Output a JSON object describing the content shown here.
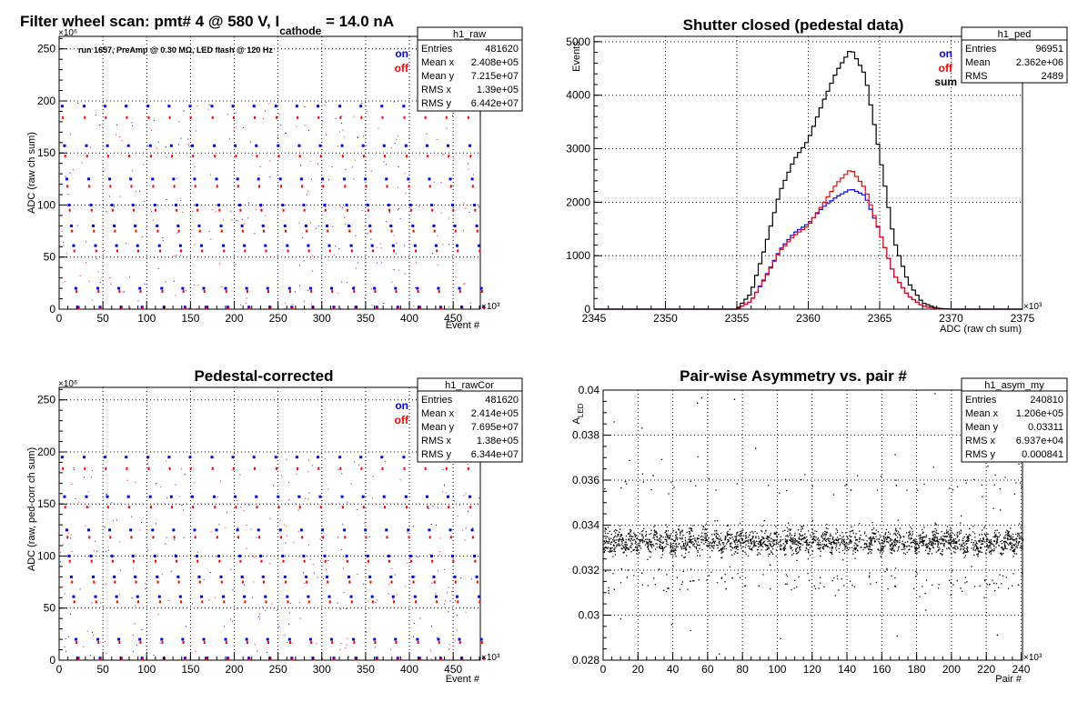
{
  "panels": [
    {
      "id": "raw",
      "title_main": "Filter wheel scan: pmt#   4 @   580 V, I",
      "title_sub": "cathode",
      "title_tail": "  = 14.0 nA",
      "ylabel": "ADC (raw ch sum)",
      "xlabel": "Event #",
      "y_exponent": "×10⁶",
      "x_exponent": "×10³",
      "annotation": "run 1657, PreAmp @ 0.30 MΩ, LED flash @  120 Hz",
      "legend": [
        {
          "label": "on",
          "color": "#0000ff"
        },
        {
          "label": "off",
          "color": "#ff0000"
        }
      ],
      "stats": {
        "name": "h1_raw",
        "rows": [
          [
            "Entries",
            "481620"
          ],
          [
            "Mean x",
            "2.408e+05"
          ],
          [
            "Mean y",
            "7.215e+07"
          ],
          [
            "RMS x",
            "1.39e+05"
          ],
          [
            "RMS y",
            "6.442e+07"
          ]
        ]
      },
      "xticks": [
        "0",
        "50",
        "100",
        "150",
        "200",
        "250",
        "300",
        "350",
        "400",
        "450"
      ],
      "yticks": [
        "0",
        "50",
        "100",
        "150",
        "200",
        "250"
      ]
    },
    {
      "id": "ped",
      "title": "Shutter closed (pedestal data)",
      "ylabel": "Events",
      "xlabel": "ADC (raw ch sum)",
      "x_exponent": "×10³",
      "legend": [
        {
          "label": "on",
          "color": "#0000ff"
        },
        {
          "label": "off",
          "color": "#ff0000"
        },
        {
          "label": "sum",
          "color": "#000000"
        }
      ],
      "stats": {
        "name": "h1_ped",
        "rows": [
          [
            "Entries",
            "96951"
          ],
          [
            "Mean",
            "2.362e+06"
          ],
          [
            "RMS",
            "2489"
          ]
        ]
      },
      "xticks": [
        "2345",
        "2350",
        "2355",
        "2360",
        "2365",
        "2370",
        "2375"
      ],
      "yticks": [
        "0",
        "1000",
        "2000",
        "3000",
        "4000",
        "5000"
      ]
    },
    {
      "id": "cor",
      "title": "Pedestal-corrected",
      "ylabel": "ADC (raw, ped-corr ch sum)",
      "xlabel": "Event #",
      "y_exponent": "×10⁶",
      "x_exponent": "×10³",
      "legend": [
        {
          "label": "on",
          "color": "#0000ff"
        },
        {
          "label": "off",
          "color": "#ff0000"
        }
      ],
      "stats": {
        "name": "h1_rawCor",
        "rows": [
          [
            "Entries",
            "481620"
          ],
          [
            "Mean x",
            "2.414e+05"
          ],
          [
            "Mean y",
            "7.695e+07"
          ],
          [
            "RMS x",
            "1.38e+05"
          ],
          [
            "RMS y",
            "6.344e+07"
          ]
        ]
      },
      "xticks": [
        "0",
        "50",
        "100",
        "150",
        "200",
        "250",
        "300",
        "350",
        "400",
        "450"
      ],
      "yticks": [
        "0",
        "50",
        "100",
        "150",
        "200",
        "250"
      ]
    },
    {
      "id": "asym",
      "title": "Pair-wise Asymmetry vs. pair #",
      "ylabel": "A",
      "ylabel_sub": "LED",
      "xlabel": "Pair #",
      "x_exponent": "×10³",
      "stats": {
        "name": "h1_asym_my",
        "rows": [
          [
            "Entries",
            "240810"
          ],
          [
            "Mean x",
            "1.206e+05"
          ],
          [
            "Mean y",
            "0.03311"
          ],
          [
            "RMS x",
            "6.937e+04"
          ],
          [
            "RMS y",
            "0.000841"
          ]
        ]
      },
      "xticks": [
        "0",
        "20",
        "40",
        "60",
        "80",
        "100",
        "120",
        "140",
        "160",
        "180",
        "200",
        "220",
        "240"
      ],
      "yticks": [
        "0.028",
        "0.03",
        "0.032",
        "0.034",
        "0.036",
        "0.038",
        "0.04"
      ]
    }
  ],
  "chart_data": [
    {
      "type": "scatter",
      "title": "Filter wheel scan: pmt#   4 @   580 V, Icathode  = 14.0 nA",
      "xlabel": "Event #",
      "ylabel": "ADC (raw ch sum)",
      "xlim": [
        0,
        481
      ],
      "ylim": [
        0,
        262
      ],
      "x_units": "×10³",
      "y_units": "×10⁶",
      "grid": true,
      "series": [
        {
          "name": "on",
          "color": "#0000ff",
          "levels_y": [
            195,
            157,
            125,
            100,
            80,
            61,
            20,
            2
          ]
        },
        {
          "name": "off",
          "color": "#ff0000",
          "levels_y": [
            184,
            147,
            118,
            95,
            75,
            56,
            17,
            1
          ]
        }
      ],
      "block_starts_x": [
        2,
        27,
        51,
        75,
        100,
        124,
        148,
        173,
        197,
        221,
        246,
        270,
        294,
        319,
        343,
        367,
        392,
        416,
        440,
        465
      ]
    },
    {
      "type": "line",
      "title": "Shutter closed (pedestal data)",
      "xlabel": "ADC (raw ch sum)",
      "ylabel": "Events",
      "xlim": [
        2345,
        2375
      ],
      "ylim": [
        0,
        5100
      ],
      "x_units": "×10³",
      "grid": true,
      "x": [
        2355,
        2356,
        2357,
        2358,
        2359,
        2360,
        2361,
        2362,
        2363,
        2364,
        2365,
        2366,
        2367,
        2368,
        2369,
        2370
      ],
      "series": [
        {
          "name": "on",
          "color": "#0000ff",
          "values": [
            0,
            150,
            600,
            1100,
            1420,
            1600,
            1900,
            2100,
            2250,
            2120,
            1450,
            650,
            250,
            60,
            10,
            0
          ]
        },
        {
          "name": "off",
          "color": "#ff0000",
          "values": [
            0,
            150,
            580,
            1080,
            1370,
            1560,
            1950,
            2350,
            2620,
            2250,
            1450,
            650,
            250,
            60,
            10,
            0
          ]
        },
        {
          "name": "sum",
          "color": "#000000",
          "values": [
            0,
            300,
            1180,
            2180,
            2790,
            3160,
            3850,
            4450,
            4870,
            4370,
            2900,
            1300,
            500,
            120,
            20,
            0
          ]
        }
      ]
    },
    {
      "type": "scatter",
      "title": "Pedestal-corrected",
      "xlabel": "Event #",
      "ylabel": "ADC (raw, ped-corr ch sum)",
      "xlim": [
        0,
        481
      ],
      "ylim": [
        0,
        262
      ],
      "x_units": "×10³",
      "y_units": "×10⁶",
      "grid": true,
      "series": [
        {
          "name": "on",
          "color": "#0000ff",
          "levels_y": [
            195,
            157,
            125,
            100,
            80,
            61,
            20,
            2
          ]
        },
        {
          "name": "off",
          "color": "#ff0000",
          "levels_y": [
            184,
            147,
            118,
            95,
            75,
            56,
            17,
            1
          ]
        }
      ],
      "block_starts_x": [
        2,
        27,
        51,
        75,
        100,
        124,
        148,
        173,
        197,
        221,
        246,
        270,
        294,
        319,
        343,
        367,
        392,
        416,
        440,
        465
      ]
    },
    {
      "type": "scatter",
      "title": "Pair-wise Asymmetry vs. pair #",
      "xlabel": "Pair #",
      "ylabel": "ALED",
      "xlim": [
        0,
        240.8
      ],
      "ylim": [
        0.028,
        0.04
      ],
      "x_units": "×10³",
      "grid": true,
      "band_center": 0.0333,
      "band_halfwidth": 0.0007,
      "dip_level": 0.0315,
      "spike_level": 0.0358,
      "series": [
        {
          "name": "",
          "color": "#000000"
        }
      ]
    }
  ]
}
